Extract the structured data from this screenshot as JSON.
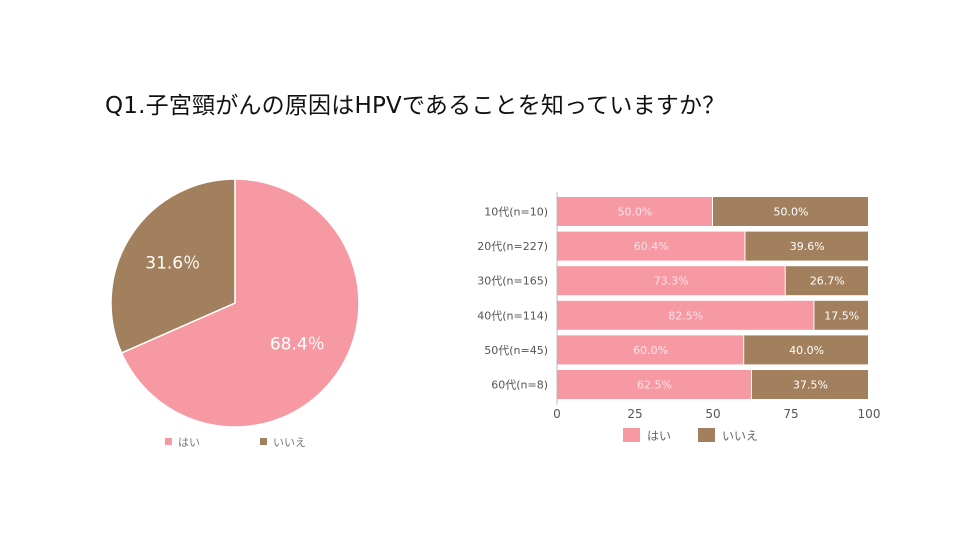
{
  "title": "Q1.子宮頸がんの原因はHPVであることを知っていますか？",
  "colors": {
    "yes": "#f799a3",
    "no": "#a2805d",
    "axis": "#bbbbbb",
    "text": "#555555"
  },
  "chart_data": [
    {
      "type": "pie",
      "labels": [
        "はい",
        "いいえ"
      ],
      "values": [
        68.4,
        31.6
      ],
      "value_labels": [
        "68.4％",
        "31.6％"
      ],
      "legend_position": "bottom"
    },
    {
      "type": "bar",
      "orientation": "horizontal",
      "stacked": true,
      "categories": [
        "10代(n=10)",
        "20代(n=227)",
        "30代(n=165)",
        "40代(n=114)",
        "50代(n=45)",
        "60代(n=8)"
      ],
      "series": [
        {
          "name": "はい",
          "values": [
            50.0,
            60.4,
            73.3,
            82.5,
            60.0,
            62.5
          ],
          "labels": [
            "50.0%",
            "60.4%",
            "73.3%",
            "82.5%",
            "60.0%",
            "62.5%"
          ]
        },
        {
          "name": "いいえ",
          "values": [
            50.0,
            39.6,
            26.7,
            17.5,
            40.0,
            37.5
          ],
          "labels": [
            "50.0%",
            "39.6%",
            "26.7%",
            "17.5%",
            "40.0%",
            "37.5%"
          ]
        }
      ],
      "xlim": [
        0,
        100
      ],
      "xticks": [
        0,
        25,
        50,
        75,
        100
      ],
      "xtick_labels": [
        "0",
        "25",
        "50",
        "75",
        "100"
      ],
      "grid": false,
      "legend_position": "bottom"
    }
  ]
}
